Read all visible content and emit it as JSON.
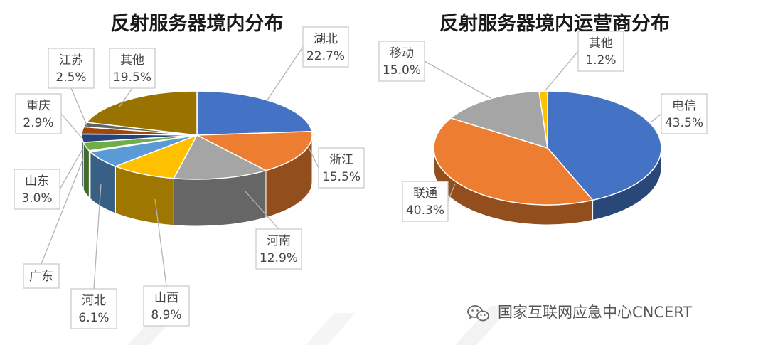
{
  "chart_data": [
    {
      "type": "pie",
      "title": "反射服务器境内分布",
      "slices": [
        {
          "label": "湖北",
          "value": 22.7,
          "value_label": "22.7%",
          "color": "#4472c4"
        },
        {
          "label": "浙江",
          "value": 15.5,
          "value_label": "15.5%",
          "color": "#ed7d31"
        },
        {
          "label": "河南",
          "value": 12.9,
          "value_label": "12.9%",
          "color": "#a5a5a5"
        },
        {
          "label": "山西",
          "value": 8.9,
          "value_label": "8.9%",
          "color": "#ffc000"
        },
        {
          "label": "河北",
          "value": 6.1,
          "value_label": "6.1%",
          "color": "#5b9bd5"
        },
        {
          "label": "广东",
          "value": null,
          "value_label": "",
          "color": "#ffffff"
        },
        {
          "label": "山东",
          "value": 3.0,
          "value_label": "3.0%",
          "color": "#70ad47"
        },
        {
          "label": "重庆",
          "value": 2.9,
          "value_label": "2.9%",
          "color": "#264478"
        },
        {
          "label": "江苏",
          "value": 2.5,
          "value_label": "2.5%",
          "color": "#9e480e"
        },
        {
          "label": "",
          "value": 1.6,
          "value_label": "",
          "color": "#636363"
        },
        {
          "label": "其他",
          "value": 19.5,
          "value_label": "19.5%",
          "color": "#997300"
        }
      ]
    },
    {
      "type": "pie",
      "title": "反射服务器境内运营商分布",
      "slices": [
        {
          "label": "电信",
          "value": 43.5,
          "value_label": "43.5%",
          "color": "#4472c4"
        },
        {
          "label": "联通",
          "value": 40.3,
          "value_label": "40.3%",
          "color": "#ed7d31"
        },
        {
          "label": "移动",
          "value": 15.0,
          "value_label": "15.0%",
          "color": "#a5a5a5"
        },
        {
          "label": "其他",
          "value": 1.2,
          "value_label": "1.2%",
          "color": "#ffc000"
        }
      ]
    }
  ],
  "watermark": {
    "text": "国家互联网应急中心CNCERT",
    "icon": "wechat-icon"
  }
}
